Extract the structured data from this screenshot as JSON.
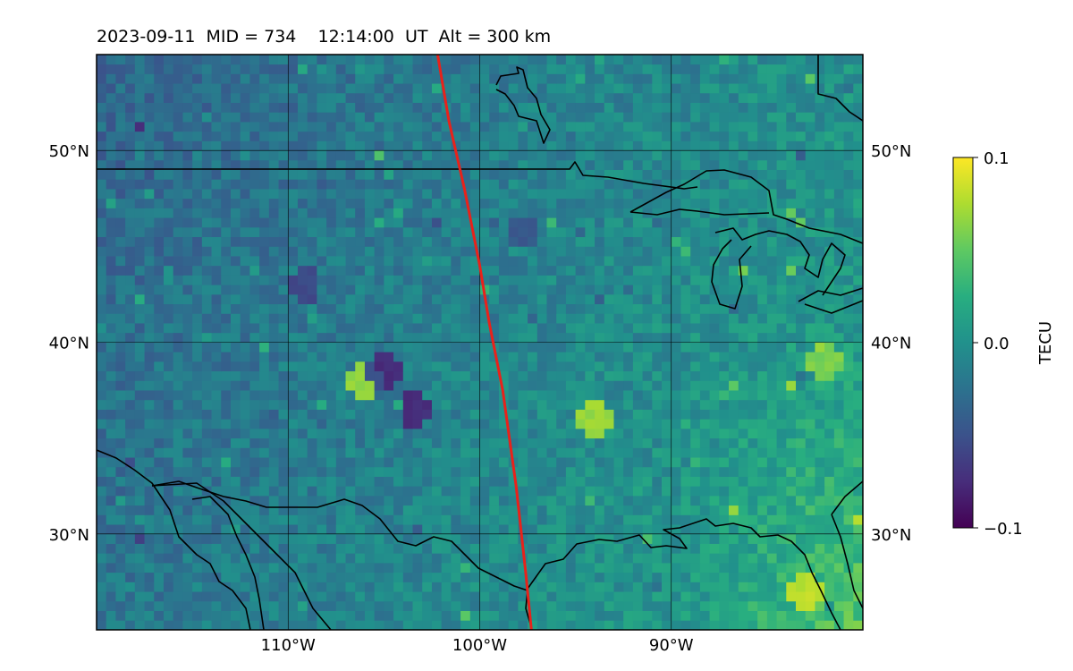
{
  "title": "2023-09-11  MID = 734    12:14:00  UT  Alt = 300 km",
  "map": {
    "projection": "plate-carree",
    "lon_range": [
      -120,
      -80
    ],
    "lat_range": [
      25,
      55
    ],
    "lon_ticks": [
      {
        "value": -110,
        "label": "110°W"
      },
      {
        "value": -100,
        "label": "100°W"
      },
      {
        "value": -90,
        "label": "90°W"
      }
    ],
    "lat_ticks": [
      {
        "value": 50,
        "label": "50°N"
      },
      {
        "value": 40,
        "label": "40°N"
      },
      {
        "value": 30,
        "label": "30°N"
      }
    ],
    "gridlines": true,
    "coastlines": true,
    "track_color": "#e8221b",
    "track": [
      [
        -102.2,
        55.0
      ],
      [
        -101.6,
        51.5
      ],
      [
        -100.8,
        48.0
      ],
      [
        -100.0,
        44.0
      ],
      [
        -99.5,
        41.0
      ],
      [
        -98.8,
        37.5
      ],
      [
        -98.1,
        32.5
      ],
      [
        -97.6,
        28.0
      ],
      [
        -97.3,
        25.0
      ]
    ],
    "pixel_field": "dTEC at 300 km, ~0.5° bins, values in TECU",
    "hotspots": [
      {
        "lon": -83.0,
        "lat": 27.0,
        "value": 0.1
      },
      {
        "lon": -82.0,
        "lat": 39.0,
        "value": 0.08
      },
      {
        "lon": -94.0,
        "lat": 36.0,
        "value": 0.1
      },
      {
        "lon": -106.0,
        "lat": 38.0,
        "value": 0.1
      },
      {
        "lon": -105.0,
        "lat": 38.5,
        "value": -0.1
      },
      {
        "lon": -103.3,
        "lat": 36.5,
        "value": -0.1
      },
      {
        "lon": -109.2,
        "lat": 43.0,
        "value": -0.07
      },
      {
        "lon": -97.8,
        "lat": 45.7,
        "value": -0.06
      }
    ]
  },
  "colorbar": {
    "label": "TECU",
    "colormap": "viridis",
    "vmin": -0.1,
    "vmax": 0.1,
    "ticks": [
      {
        "value": 0.1,
        "label": "0.1"
      },
      {
        "value": 0.0,
        "label": "0.0"
      },
      {
        "value": -0.1,
        "label": "−0.1"
      }
    ]
  }
}
